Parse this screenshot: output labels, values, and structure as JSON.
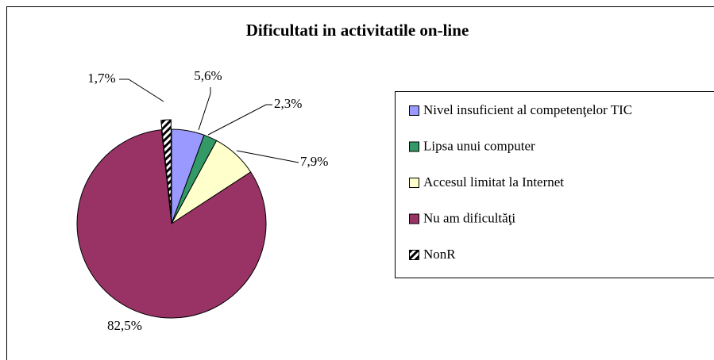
{
  "chart_data": {
    "type": "pie",
    "title": "Dificultati in activitatile on-line",
    "categories": [
      "Nivel insuficient al competenţelor TIC",
      "Lipsa unui computer",
      "Accesul limitat la Internet",
      "Nu am dificultăţi",
      "NonR"
    ],
    "values": [
      5.6,
      2.3,
      7.9,
      82.5,
      1.7
    ],
    "value_labels": [
      "5,6%",
      "2,3%",
      "7,9%",
      "82,5%",
      "1,7%"
    ],
    "colors": [
      "#9999ff",
      "#339966",
      "#ffffcc",
      "#993366",
      "#000000"
    ],
    "legend": "right"
  }
}
